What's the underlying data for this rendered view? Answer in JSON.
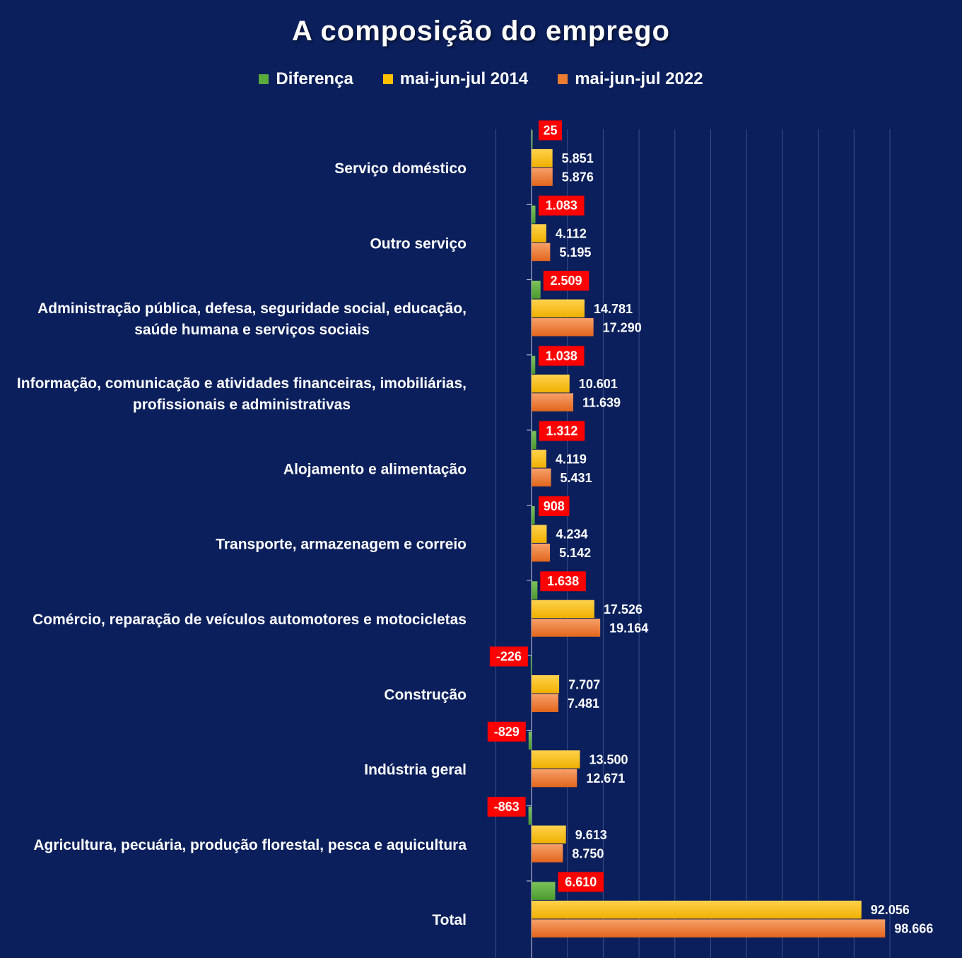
{
  "colors": {
    "background": "#0b1f5c",
    "diff": "#5aaa3c",
    "y2014": "#ffc000",
    "y2022": "#ed7d31",
    "diff_label_bg": "#ff0000",
    "grid": "#3a4f8a"
  },
  "chart_data": {
    "type": "bar",
    "orientation": "horizontal",
    "title": "A composição do emprego",
    "legend_position": "top",
    "grid": true,
    "xlim": [
      -20000,
      110000
    ],
    "series": [
      {
        "name": "Diferença",
        "key": "diff",
        "values": [
          25,
          1083,
          2509,
          1038,
          1312,
          908,
          1638,
          -226,
          -829,
          -863,
          6610
        ]
      },
      {
        "name": "mai-jun-jul 2014",
        "key": "y2014",
        "values": [
          5851,
          4112,
          14781,
          10601,
          4119,
          4234,
          17526,
          7707,
          13500,
          9613,
          92056
        ]
      },
      {
        "name": "mai-jun-jul 2022",
        "key": "y2022",
        "values": [
          5876,
          5195,
          17290,
          11639,
          5431,
          5142,
          19164,
          7481,
          12671,
          8750,
          98666
        ]
      }
    ],
    "categories": [
      [
        "Serviço doméstico"
      ],
      [
        "Outro serviço"
      ],
      [
        "Administração pública, defesa, seguridade social, educação,",
        "saúde humana e serviços sociais"
      ],
      [
        "Informação, comunicação e atividades financeiras, imobiliárias,",
        "profissionais e administrativas"
      ],
      [
        "Alojamento e alimentação"
      ],
      [
        "Transporte, armazenagem e correio"
      ],
      [
        "Comércio, reparação de veículos automotores e motocicletas"
      ],
      [
        "Construção"
      ],
      [
        "Indústria geral"
      ],
      [
        "Agricultura, pecuária, produção florestal, pesca e aquicultura"
      ],
      [
        "Total"
      ]
    ],
    "diff_labels": [
      "25",
      "1.083",
      "2.509",
      "1.038",
      "1.312",
      "908",
      "1.638",
      "-226",
      "-829",
      "-863",
      "6.610"
    ],
    "y2014_labels": [
      "5.851",
      "4.112",
      "14.781",
      "10.601",
      "4.119",
      "4.234",
      "17.526",
      "7.707",
      "13.500",
      "9.613",
      "92.056"
    ],
    "y2022_labels": [
      "5.876",
      "5.195",
      "17.290",
      "11.639",
      "5.431",
      "5.142",
      "19.164",
      "7.481",
      "12.671",
      "8.750",
      "98.666"
    ]
  }
}
